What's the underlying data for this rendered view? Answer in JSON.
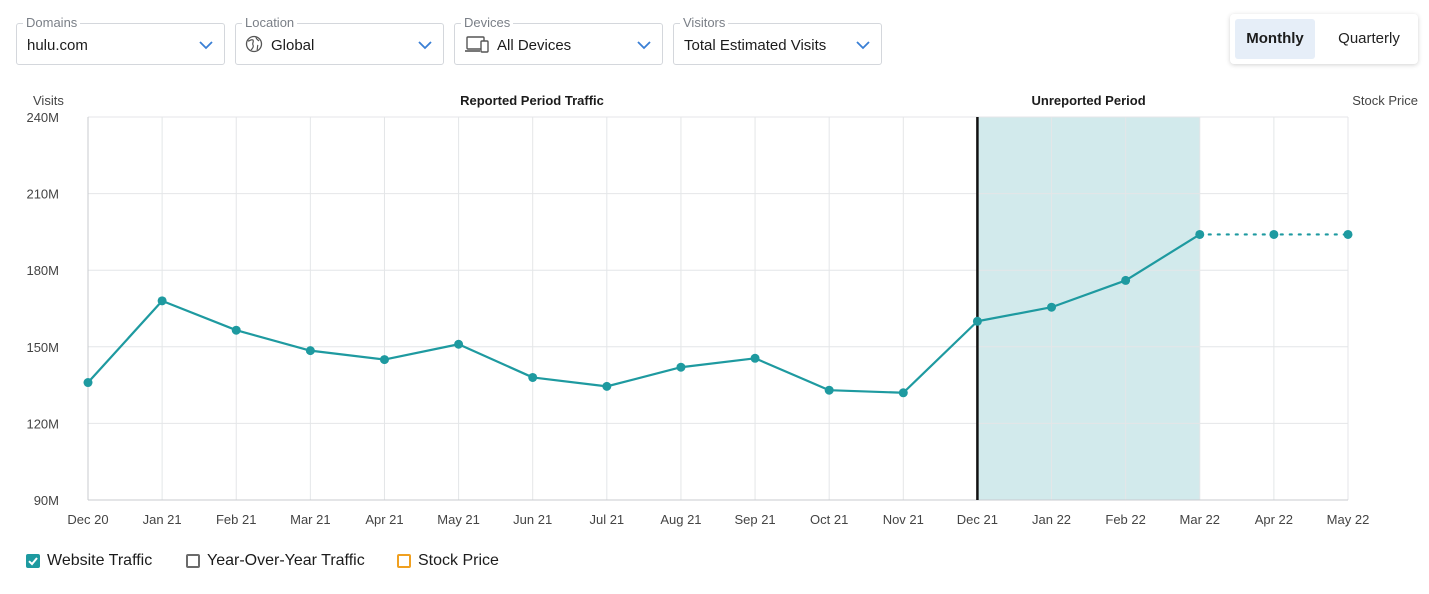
{
  "filters": {
    "domains": {
      "label": "Domains",
      "value": "hulu.com"
    },
    "location": {
      "label": "Location",
      "value": "Global",
      "icon": "globe-icon"
    },
    "devices": {
      "label": "Devices",
      "value": "All Devices",
      "icon": "devices-icon"
    },
    "visitors": {
      "label": "Visitors",
      "value": "Total Estimated Visits"
    }
  },
  "period_toggle": {
    "monthly": "Monthly",
    "quarterly": "Quarterly",
    "active": "Monthly"
  },
  "colors": {
    "series": "#1e9aa0",
    "unreported_band": "#d2eaec",
    "divider": "#111111",
    "grid": "#e4e6e8",
    "checkbox_checked": "#1e9aa0",
    "checkbox_gray": "#6b6b6b",
    "checkbox_orange": "#f0a020",
    "accent_chevron": "#3a7fd5"
  },
  "chart_data": {
    "type": "line",
    "ylabel": "Visits",
    "y2label": "Stock Price",
    "ylim": [
      90000000,
      240000000
    ],
    "yticks": [
      "90M",
      "120M",
      "150M",
      "180M",
      "210M",
      "240M"
    ],
    "categories": [
      "Dec 20",
      "Jan 21",
      "Feb 21",
      "Mar 21",
      "Apr 21",
      "May 21",
      "Jun 21",
      "Jul 21",
      "Aug 21",
      "Sep 21",
      "Oct 21",
      "Nov 21",
      "Dec 21",
      "Jan 22",
      "Feb 22",
      "Mar 22",
      "Apr 22",
      "May 22"
    ],
    "series": [
      {
        "name": "Website Traffic",
        "values": [
          136000000,
          168000000,
          156500000,
          148500000,
          145000000,
          151000000,
          138000000,
          134500000,
          142000000,
          145500000,
          133000000,
          132000000,
          160000000,
          165500000,
          176000000,
          194000000,
          194000000,
          194000000
        ],
        "projected_from_index": 15
      }
    ],
    "annotations": {
      "reported": "Reported Period Traffic",
      "unreported": "Unreported Period",
      "unreported_range": [
        "Dec 21",
        "Mar 22"
      ]
    },
    "grid": true
  },
  "legend": [
    {
      "label": "Website Traffic",
      "checked": true,
      "color": "#1e9aa0"
    },
    {
      "label": "Year-Over-Year Traffic",
      "checked": false,
      "color": "#6b6b6b"
    },
    {
      "label": "Stock Price",
      "checked": false,
      "color": "#f0a020"
    }
  ]
}
